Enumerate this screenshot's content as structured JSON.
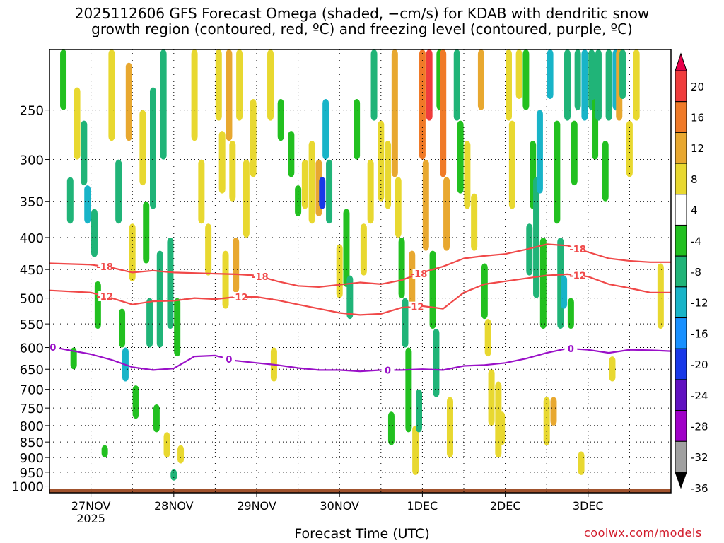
{
  "chart_data": {
    "type": "heatmap",
    "title_line1": "2025112606 GFS Forecast Omega (shaded, −cm/s) for KDAB with dendritic snow",
    "title_line2": "growth region (contoured, red, ºC) and freezing level (contoured, purple, ºC)",
    "xlabel": "Forecast Time (UTC)",
    "credit": "coolwx.com/models",
    "x_ticks": [
      {
        "label": "27NOV",
        "sub": "2025",
        "t": 18
      },
      {
        "label": "28NOV",
        "sub": "",
        "t": 42
      },
      {
        "label": "29NOV",
        "sub": "",
        "t": 66
      },
      {
        "label": "30NOV",
        "sub": "",
        "t": 90
      },
      {
        "label": "1DEC",
        "sub": "",
        "t": 114
      },
      {
        "label": "2DEC",
        "sub": "",
        "t": 138
      },
      {
        "label": "3DEC",
        "sub": "",
        "t": 162
      }
    ],
    "xlim": [
      6,
      186
    ],
    "y_ticks": [
      250,
      300,
      350,
      400,
      450,
      500,
      550,
      600,
      650,
      700,
      750,
      800,
      850,
      900,
      950,
      1000
    ],
    "ylim": [
      1025,
      200
    ],
    "y_scale": "log",
    "colorbar": {
      "labels": [
        "20",
        "16",
        "12",
        "8",
        "4",
        "-4",
        "-8",
        "-12",
        "-16",
        "-20",
        "-24",
        "-28",
        "-32",
        "-36"
      ],
      "colors": [
        "#e8004a",
        "#f03c3c",
        "#f07a28",
        "#e8a830",
        "#e8d830",
        "#ffffff",
        "#22c020",
        "#20b478",
        "#18b4c8",
        "#1890ff",
        "#1838e8",
        "#6010c0",
        "#a000c8",
        "#a0a0a0",
        "#000000"
      ]
    },
    "contour_labels": {
      "dgz_upper": "-18",
      "dgz_lower": "-12",
      "freezing": "0"
    },
    "dgz_upper_line": {
      "t": [
        6,
        18,
        24,
        30,
        36,
        42,
        48,
        54,
        60,
        66,
        72,
        78,
        84,
        90,
        96,
        102,
        108,
        114,
        120,
        126,
        132,
        138,
        144,
        150,
        156,
        162,
        168,
        174,
        180,
        186
      ],
      "p": [
        440,
        442,
        447,
        455,
        452,
        455,
        456,
        457,
        458,
        460,
        470,
        478,
        480,
        476,
        472,
        475,
        468,
        455,
        445,
        432,
        428,
        425,
        418,
        410,
        412,
        422,
        432,
        436,
        438,
        438
      ]
    },
    "dgz_lower_line": {
      "t": [
        6,
        18,
        24,
        30,
        36,
        42,
        48,
        54,
        60,
        66,
        72,
        78,
        84,
        90,
        96,
        102,
        108,
        114,
        120,
        126,
        132,
        138,
        144,
        150,
        156,
        162,
        168,
        174,
        180,
        186
      ],
      "p": [
        486,
        490,
        500,
        512,
        506,
        505,
        500,
        502,
        498,
        498,
        504,
        512,
        520,
        528,
        532,
        530,
        518,
        515,
        520,
        490,
        475,
        470,
        465,
        460,
        458,
        462,
        475,
        482,
        490,
        490
      ]
    },
    "freezing_line": {
      "t": [
        6,
        18,
        24,
        30,
        36,
        42,
        48,
        54,
        60,
        66,
        72,
        78,
        84,
        90,
        96,
        102,
        108,
        114,
        120,
        126,
        132,
        138,
        144,
        150,
        156,
        162,
        168,
        174,
        180,
        186
      ],
      "p": [
        598,
        615,
        628,
        645,
        652,
        648,
        620,
        618,
        630,
        635,
        640,
        647,
        652,
        652,
        655,
        652,
        652,
        650,
        652,
        642,
        640,
        635,
        625,
        612,
        602,
        605,
        612,
        605,
        606,
        608
      ]
    },
    "omega_cells": [
      {
        "t": 10,
        "p1": 200,
        "p2": 250,
        "v": -6
      },
      {
        "t": 12,
        "p1": 320,
        "p2": 380,
        "v": -10
      },
      {
        "t": 13,
        "p1": 600,
        "p2": 650,
        "v": -6
      },
      {
        "t": 14,
        "p1": 230,
        "p2": 300,
        "v": 6
      },
      {
        "t": 16,
        "p1": 260,
        "p2": 330,
        "v": -8
      },
      {
        "t": 17,
        "p1": 330,
        "p2": 380,
        "v": -12
      },
      {
        "t": 19,
        "p1": 360,
        "p2": 430,
        "v": -8
      },
      {
        "t": 20,
        "p1": 470,
        "p2": 560,
        "v": -6
      },
      {
        "t": 22,
        "p1": 860,
        "p2": 900,
        "v": -6
      },
      {
        "t": 24,
        "p1": 200,
        "p2": 280,
        "v": 6
      },
      {
        "t": 26,
        "p1": 300,
        "p2": 380,
        "v": -8
      },
      {
        "t": 27,
        "p1": 520,
        "p2": 600,
        "v": -6
      },
      {
        "t": 28,
        "p1": 600,
        "p2": 680,
        "v": -14
      },
      {
        "t": 29,
        "p1": 210,
        "p2": 280,
        "v": 10
      },
      {
        "t": 30,
        "p1": 380,
        "p2": 470,
        "v": 6
      },
      {
        "t": 31,
        "p1": 690,
        "p2": 780,
        "v": -6
      },
      {
        "t": 33,
        "p1": 250,
        "p2": 330,
        "v": 6
      },
      {
        "t": 34,
        "p1": 350,
        "p2": 440,
        "v": -6
      },
      {
        "t": 35,
        "p1": 500,
        "p2": 600,
        "v": -8
      },
      {
        "t": 36,
        "p1": 230,
        "p2": 360,
        "v": -8
      },
      {
        "t": 37,
        "p1": 740,
        "p2": 820,
        "v": -6
      },
      {
        "t": 38,
        "p1": 420,
        "p2": 600,
        "v": -8
      },
      {
        "t": 39,
        "p1": 200,
        "p2": 300,
        "v": -8
      },
      {
        "t": 40,
        "p1": 820,
        "p2": 900,
        "v": 6
      },
      {
        "t": 41,
        "p1": 400,
        "p2": 560,
        "v": -8
      },
      {
        "t": 42,
        "p1": 940,
        "p2": 980,
        "v": -8
      },
      {
        "t": 43,
        "p1": 500,
        "p2": 620,
        "v": -6
      },
      {
        "t": 44,
        "p1": 860,
        "p2": 920,
        "v": 6
      },
      {
        "t": 48,
        "p1": 200,
        "p2": 280,
        "v": 6
      },
      {
        "t": 50,
        "p1": 300,
        "p2": 380,
        "v": 6
      },
      {
        "t": 52,
        "p1": 380,
        "p2": 460,
        "v": 6
      },
      {
        "t": 55,
        "p1": 200,
        "p2": 260,
        "v": 6
      },
      {
        "t": 56,
        "p1": 270,
        "p2": 340,
        "v": 6
      },
      {
        "t": 57,
        "p1": 420,
        "p2": 520,
        "v": 6
      },
      {
        "t": 58,
        "p1": 200,
        "p2": 280,
        "v": 8
      },
      {
        "t": 59,
        "p1": 280,
        "p2": 350,
        "v": 6
      },
      {
        "t": 60,
        "p1": 400,
        "p2": 490,
        "v": 10
      },
      {
        "t": 61,
        "p1": 200,
        "p2": 260,
        "v": 6
      },
      {
        "t": 63,
        "p1": 300,
        "p2": 400,
        "v": 6
      },
      {
        "t": 65,
        "p1": 240,
        "p2": 320,
        "v": 6
      },
      {
        "t": 70,
        "p1": 200,
        "p2": 260,
        "v": 6
      },
      {
        "t": 71,
        "p1": 600,
        "p2": 680,
        "v": 6
      },
      {
        "t": 73,
        "p1": 240,
        "p2": 280,
        "v": -6
      },
      {
        "t": 76,
        "p1": 270,
        "p2": 320,
        "v": -6
      },
      {
        "t": 78,
        "p1": 330,
        "p2": 370,
        "v": -6
      },
      {
        "t": 80,
        "p1": 300,
        "p2": 360,
        "v": 6
      },
      {
        "t": 82,
        "p1": 280,
        "p2": 380,
        "v": 6
      },
      {
        "t": 84,
        "p1": 300,
        "p2": 370,
        "v": 10
      },
      {
        "t": 85,
        "p1": 320,
        "p2": 360,
        "v": -20
      },
      {
        "t": 86,
        "p1": 240,
        "p2": 300,
        "v": -12
      },
      {
        "t": 87,
        "p1": 300,
        "p2": 380,
        "v": -8
      },
      {
        "t": 90,
        "p1": 410,
        "p2": 500,
        "v": 6
      },
      {
        "t": 92,
        "p1": 360,
        "p2": 480,
        "v": -6
      },
      {
        "t": 93,
        "p1": 460,
        "p2": 540,
        "v": -8
      },
      {
        "t": 95,
        "p1": 240,
        "p2": 300,
        "v": -6
      },
      {
        "t": 97,
        "p1": 380,
        "p2": 460,
        "v": 6
      },
      {
        "t": 99,
        "p1": 300,
        "p2": 380,
        "v": 6
      },
      {
        "t": 100,
        "p1": 200,
        "p2": 260,
        "v": -8
      },
      {
        "t": 102,
        "p1": 260,
        "p2": 350,
        "v": 6
      },
      {
        "t": 104,
        "p1": 280,
        "p2": 360,
        "v": 6
      },
      {
        "t": 105,
        "p1": 760,
        "p2": 860,
        "v": -6
      },
      {
        "t": 106,
        "p1": 200,
        "p2": 320,
        "v": 8
      },
      {
        "t": 107,
        "p1": 320,
        "p2": 400,
        "v": 6
      },
      {
        "t": 108,
        "p1": 400,
        "p2": 500,
        "v": -6
      },
      {
        "t": 109,
        "p1": 500,
        "p2": 600,
        "v": -8
      },
      {
        "t": 110,
        "p1": 600,
        "p2": 820,
        "v": -6
      },
      {
        "t": 111,
        "p1": 420,
        "p2": 520,
        "v": 8
      },
      {
        "t": 112,
        "p1": 800,
        "p2": 960,
        "v": 6
      },
      {
        "t": 113,
        "p1": 700,
        "p2": 820,
        "v": -8
      },
      {
        "t": 114,
        "p1": 200,
        "p2": 300,
        "v": 12
      },
      {
        "t": 115,
        "p1": 300,
        "p2": 420,
        "v": 8
      },
      {
        "t": 116,
        "p1": 200,
        "p2": 260,
        "v": 16
      },
      {
        "t": 117,
        "p1": 420,
        "p2": 560,
        "v": -6
      },
      {
        "t": 118,
        "p1": 560,
        "p2": 720,
        "v": -8
      },
      {
        "t": 119,
        "p1": 200,
        "p2": 250,
        "v": -6
      },
      {
        "t": 120,
        "p1": 200,
        "p2": 320,
        "v": 14
      },
      {
        "t": 121,
        "p1": 320,
        "p2": 420,
        "v": 8
      },
      {
        "t": 122,
        "p1": 720,
        "p2": 900,
        "v": 6
      },
      {
        "t": 124,
        "p1": 200,
        "p2": 260,
        "v": -8
      },
      {
        "t": 125,
        "p1": 260,
        "p2": 340,
        "v": -6
      },
      {
        "t": 127,
        "p1": 280,
        "p2": 360,
        "v": 6
      },
      {
        "t": 129,
        "p1": 340,
        "p2": 420,
        "v": 6
      },
      {
        "t": 131,
        "p1": 200,
        "p2": 250,
        "v": 8
      },
      {
        "t": 132,
        "p1": 440,
        "p2": 540,
        "v": -6
      },
      {
        "t": 133,
        "p1": 540,
        "p2": 620,
        "v": 6
      },
      {
        "t": 134,
        "p1": 650,
        "p2": 800,
        "v": 6
      },
      {
        "t": 136,
        "p1": 680,
        "p2": 900,
        "v": 6
      },
      {
        "t": 137,
        "p1": 760,
        "p2": 860,
        "v": 6
      },
      {
        "t": 139,
        "p1": 200,
        "p2": 260,
        "v": 6
      },
      {
        "t": 140,
        "p1": 260,
        "p2": 360,
        "v": 6
      },
      {
        "t": 142,
        "p1": 200,
        "p2": 240,
        "v": 6
      },
      {
        "t": 144,
        "p1": 200,
        "p2": 250,
        "v": -6
      },
      {
        "t": 145,
        "p1": 380,
        "p2": 460,
        "v": -8
      },
      {
        "t": 146,
        "p1": 280,
        "p2": 360,
        "v": -6
      },
      {
        "t": 147,
        "p1": 320,
        "p2": 500,
        "v": -8
      },
      {
        "t": 148,
        "p1": 250,
        "p2": 340,
        "v": -12
      },
      {
        "t": 149,
        "p1": 400,
        "p2": 560,
        "v": -6
      },
      {
        "t": 150,
        "p1": 720,
        "p2": 860,
        "v": 6
      },
      {
        "t": 151,
        "p1": 200,
        "p2": 240,
        "v": -12
      },
      {
        "t": 152,
        "p1": 720,
        "p2": 800,
        "v": 8
      },
      {
        "t": 153,
        "p1": 260,
        "p2": 380,
        "v": -6
      },
      {
        "t": 154,
        "p1": 400,
        "p2": 560,
        "v": -8
      },
      {
        "t": 155,
        "p1": 460,
        "p2": 520,
        "v": -12
      },
      {
        "t": 156,
        "p1": 200,
        "p2": 260,
        "v": -8
      },
      {
        "t": 157,
        "p1": 500,
        "p2": 560,
        "v": -6
      },
      {
        "t": 158,
        "p1": 260,
        "p2": 330,
        "v": -6
      },
      {
        "t": 159,
        "p1": 200,
        "p2": 250,
        "v": -10
      },
      {
        "t": 160,
        "p1": 880,
        "p2": 960,
        "v": 6
      },
      {
        "t": 161,
        "p1": 200,
        "p2": 260,
        "v": -12
      },
      {
        "t": 163,
        "p1": 200,
        "p2": 250,
        "v": -8
      },
      {
        "t": 164,
        "p1": 240,
        "p2": 300,
        "v": -6
      },
      {
        "t": 165,
        "p1": 200,
        "p2": 260,
        "v": -10
      },
      {
        "t": 167,
        "p1": 280,
        "p2": 350,
        "v": -6
      },
      {
        "t": 168,
        "p1": 200,
        "p2": 260,
        "v": -8
      },
      {
        "t": 169,
        "p1": 620,
        "p2": 680,
        "v": 6
      },
      {
        "t": 170,
        "p1": 200,
        "p2": 250,
        "v": -12
      },
      {
        "t": 171,
        "p1": 200,
        "p2": 260,
        "v": 8
      },
      {
        "t": 172,
        "p1": 200,
        "p2": 240,
        "v": -10
      },
      {
        "t": 174,
        "p1": 260,
        "p2": 320,
        "v": 6
      },
      {
        "t": 176,
        "p1": 200,
        "p2": 260,
        "v": 6
      },
      {
        "t": 183,
        "p1": 440,
        "p2": 560,
        "v": 6
      }
    ]
  }
}
